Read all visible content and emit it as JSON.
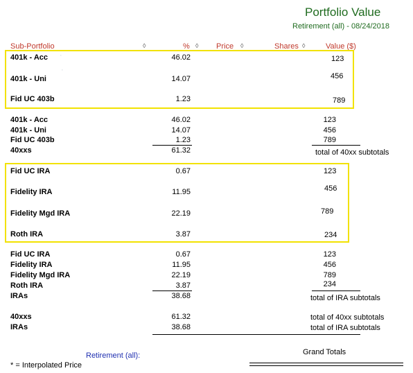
{
  "header": {
    "title": "Portfolio Value",
    "subtitle": "Retirement (all) - 08/24/2018"
  },
  "columns": {
    "sub_portfolio": "Sub-Portfolio",
    "percent": "%",
    "price": "Price",
    "shares": "Shares",
    "value": "Value ($)"
  },
  "boxed_40x": [
    {
      "name": "401k - Acc",
      "pct": "46.02",
      "value": "123"
    },
    {
      "name": "401k - Uni",
      "pct": "14.07",
      "value": "456"
    },
    {
      "name": "Fid UC 403b",
      "pct": "1.23",
      "value": "789"
    }
  ],
  "list_40x": [
    {
      "name": "401k - Acc",
      "pct": "46.02",
      "value": "123"
    },
    {
      "name": "401k - Uni",
      "pct": "14.07",
      "value": "456"
    },
    {
      "name": "Fid UC 403b",
      "pct": "1.23",
      "value": "789"
    }
  ],
  "subtotal_40x": {
    "name": "40xxs",
    "pct": "61.32",
    "note": "total of 40xx subtotals"
  },
  "boxed_ira": [
    {
      "name": "Fid UC IRA",
      "pct": "0.67",
      "value": "123"
    },
    {
      "name": "Fidelity IRA",
      "pct": "11.95",
      "value": "456"
    },
    {
      "name": "Fidelity Mgd IRA",
      "pct": "22.19",
      "value": "789"
    },
    {
      "name": "Roth IRA",
      "pct": "3.87",
      "value": "234"
    }
  ],
  "list_ira": [
    {
      "name": "Fid UC IRA",
      "pct": "0.67",
      "value": "123"
    },
    {
      "name": "Fidelity IRA",
      "pct": "11.95",
      "value": "456"
    },
    {
      "name": "Fidelity Mgd IRA",
      "pct": "22.19",
      "value": "789"
    },
    {
      "name": "Roth IRA",
      "pct": "3.87",
      "value": "234"
    }
  ],
  "subtotal_ira": {
    "name": "IRAs",
    "pct": "38.68",
    "note": "total of IRA subtotals"
  },
  "totals": [
    {
      "name": "40xxs",
      "pct": "61.32",
      "note": "total of 40xx subtotals"
    },
    {
      "name": "IRAs",
      "pct": "38.68",
      "note": "total of IRA subtotals"
    }
  ],
  "footer": {
    "label": "Retirement (all):",
    "grand_totals": "Grand Totals",
    "note": "* = Interpolated Price"
  }
}
